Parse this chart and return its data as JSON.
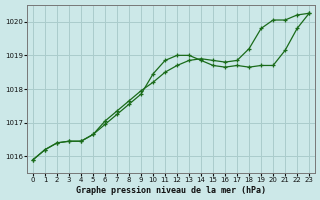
{
  "xlabel": "Graphe pression niveau de la mer (hPa)",
  "bg_color": "#cce8e8",
  "grid_color": "#aacccc",
  "line_color": "#1a6b1a",
  "ylim": [
    1015.5,
    1020.5
  ],
  "xlim": [
    -0.5,
    23.5
  ],
  "yticks": [
    1016,
    1017,
    1018,
    1019,
    1020
  ],
  "xticks": [
    0,
    1,
    2,
    3,
    4,
    5,
    6,
    7,
    8,
    9,
    10,
    11,
    12,
    13,
    14,
    15,
    16,
    17,
    18,
    19,
    20,
    21,
    22,
    23
  ],
  "series1_x": [
    0,
    1,
    2,
    3,
    4,
    5,
    6,
    7,
    8,
    9,
    10,
    11,
    12,
    13,
    14,
    15,
    16,
    17,
    18,
    19,
    20,
    21,
    22,
    23
  ],
  "series1_y": [
    1015.9,
    1016.2,
    1016.4,
    1016.45,
    1016.45,
    1016.65,
    1016.95,
    1017.25,
    1017.55,
    1017.85,
    1018.45,
    1018.85,
    1019.0,
    1019.0,
    1018.85,
    1018.7,
    1018.65,
    1018.7,
    1018.65,
    1018.7,
    1018.7,
    1019.15,
    1019.8,
    1020.25
  ],
  "series2_x": [
    0,
    1,
    2,
    3,
    4,
    5,
    6,
    7,
    8,
    9,
    10,
    11,
    12,
    13,
    14,
    15,
    16,
    17,
    18,
    19,
    20,
    21,
    22,
    23
  ],
  "series2_y": [
    1015.9,
    1016.2,
    1016.4,
    1016.45,
    1016.45,
    1016.65,
    1017.05,
    1017.35,
    1017.65,
    1017.95,
    1018.2,
    1018.5,
    1018.7,
    1018.85,
    1018.9,
    1018.85,
    1018.8,
    1018.85,
    1019.2,
    1019.8,
    1020.05,
    1020.05,
    1020.2,
    1020.25
  ]
}
